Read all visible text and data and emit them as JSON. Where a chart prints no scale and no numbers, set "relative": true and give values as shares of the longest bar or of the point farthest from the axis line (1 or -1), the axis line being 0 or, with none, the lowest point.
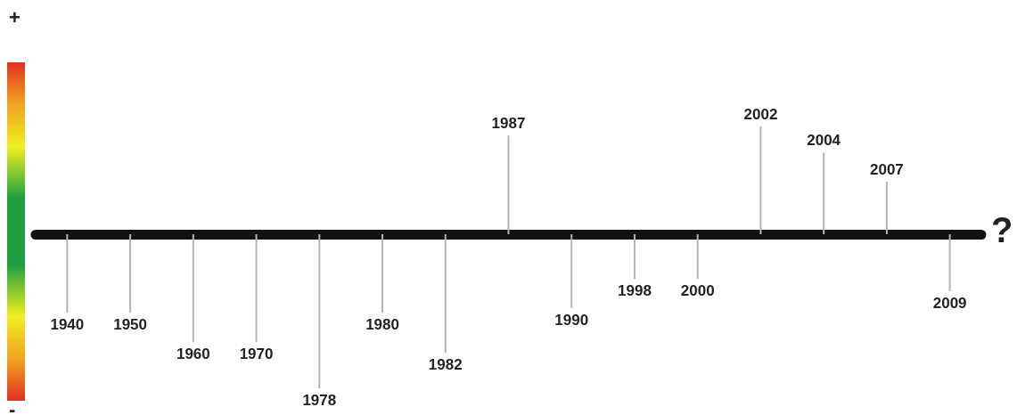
{
  "chart_data": {
    "type": "bar",
    "relative": true,
    "marker": "none",
    "grid": false,
    "tick_labels": false,
    "categories": [
      "1940",
      "1950",
      "1960",
      "1970",
      "1978",
      "1980",
      "1982",
      "1987",
      "1990",
      "1998",
      "2000",
      "2002",
      "2004",
      "2007",
      "2009"
    ],
    "values": [
      -0.51,
      -0.51,
      -0.7,
      -0.7,
      -1,
      -0.51,
      -0.77,
      0.64,
      -0.48,
      -0.29,
      -0.29,
      0.7,
      0.53,
      0.34,
      -0.37
    ],
    "color": "#b4b4b4",
    "annotations": [
      "+",
      "-",
      "?"
    ]
  }
}
